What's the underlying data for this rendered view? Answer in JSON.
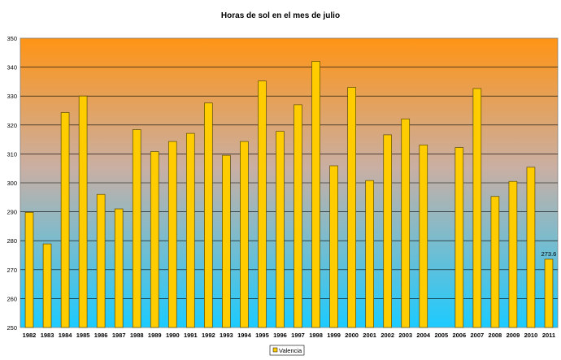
{
  "chart_data": {
    "type": "bar",
    "title": "Horas de sol en el mes de julio",
    "xlabel": "",
    "ylabel": "",
    "ylim": [
      250,
      350
    ],
    "y_ticks": [
      250,
      260,
      270,
      280,
      290,
      300,
      310,
      320,
      330,
      340,
      350
    ],
    "grid": true,
    "legend": "bottom-center",
    "categories": [
      "1982",
      "1983",
      "1984",
      "1985",
      "1986",
      "1987",
      "1988",
      "1989",
      "1990",
      "1991",
      "1992",
      "1993",
      "1994",
      "1995",
      "1996",
      "1997",
      "1998",
      "1999",
      "2000",
      "2001",
      "2002",
      "2003",
      "2004",
      "2005",
      "2006",
      "2007",
      "2008",
      "2009",
      "2010",
      "2011"
    ],
    "series": [
      {
        "name": "Valencia",
        "color": "#FFCC00",
        "values": [
          289.8,
          278.9,
          324.3,
          330.0,
          296.0,
          291.0,
          318.4,
          310.8,
          314.3,
          317.1,
          327.6,
          309.5,
          314.3,
          335.2,
          317.8,
          327.0,
          342.0,
          305.9,
          333.0,
          300.8,
          316.6,
          322.1,
          313.1,
          null,
          312.2,
          332.6,
          295.3,
          300.5,
          305.4,
          273.6
        ]
      }
    ],
    "data_labels": [
      {
        "category": "2011",
        "text": "273.6"
      }
    ],
    "colors": {
      "bar_fill": "#FFCC00",
      "bar_stroke": "#5a4a00",
      "bg_top": "#FF9415",
      "bg_bottom": "#1CCBFF",
      "grid": "#000000"
    }
  }
}
